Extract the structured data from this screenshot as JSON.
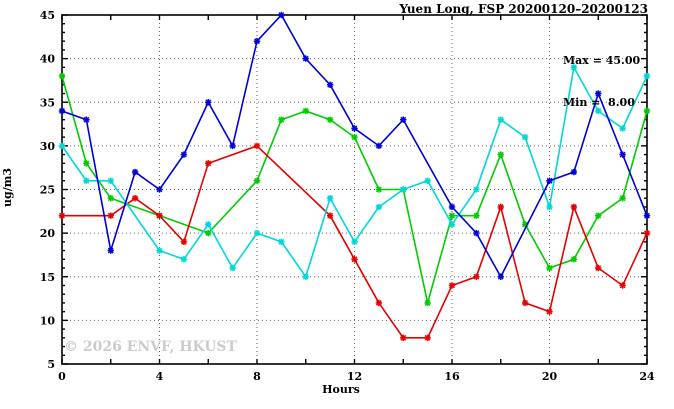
{
  "title": "Yuen Long, FSP 20200120–20200123",
  "legend": {
    "max_label": "Max = 45.00",
    "min_label": "Min =  8.00"
  },
  "watermark": "© 2026 ENVF, HKUST",
  "axes": {
    "xlabel": "Hours",
    "ylabel": "ug/m3"
  },
  "chart_data": {
    "type": "line",
    "title": "Yuen Long, FSP 20200120–20200123",
    "xlabel": "Hours",
    "ylabel": "ug/m3",
    "xlim": [
      0,
      24
    ],
    "ylim": [
      5,
      45
    ],
    "grid": "dotted",
    "legend_position": "top-right-inside",
    "stats": {
      "max": 45.0,
      "min": 8.0
    },
    "x": [
      0,
      1,
      2,
      3,
      4,
      5,
      6,
      7,
      8,
      9,
      10,
      11,
      12,
      13,
      14,
      15,
      16,
      17,
      18,
      19,
      20,
      21,
      22,
      23,
      24
    ],
    "x_tick_labels": [
      0,
      4,
      8,
      12,
      16,
      20,
      24
    ],
    "x_minor_tick_step": 2,
    "y_tick_labels": [
      5,
      10,
      15,
      20,
      25,
      30,
      35,
      40,
      45
    ],
    "y_minor_tick_step": 1,
    "x_gridlines": [
      4,
      8,
      12,
      16,
      20
    ],
    "y_gridlines": [
      10,
      15,
      20,
      25,
      30,
      35,
      40
    ],
    "marker": "asterisk-cross",
    "series": [
      {
        "name": "series-green",
        "color": "#00cc00",
        "values": [
          38,
          28,
          24,
          null,
          22,
          null,
          20,
          null,
          26,
          33,
          34,
          33,
          31,
          25,
          25,
          12,
          22,
          22,
          29,
          21,
          16,
          17,
          22,
          24,
          34
        ]
      },
      {
        "name": "series-red",
        "color": "#e60000",
        "values": [
          22,
          null,
          22,
          24,
          22,
          19,
          28,
          null,
          30,
          null,
          null,
          22,
          17,
          12,
          8,
          8,
          14,
          15,
          23,
          12,
          11,
          23,
          16,
          14,
          20
        ]
      },
      {
        "name": "series-cyan",
        "color": "#00d8d8",
        "values": [
          30,
          26,
          26,
          null,
          18,
          17,
          21,
          16,
          20,
          19,
          15,
          24,
          19,
          23,
          25,
          26,
          21,
          25,
          33,
          31,
          23,
          39,
          34,
          32,
          38
        ]
      },
      {
        "name": "series-blue",
        "color": "#0000d8",
        "values": [
          34,
          33,
          18,
          27,
          25,
          29,
          35,
          30,
          42,
          45,
          40,
          37,
          32,
          30,
          33,
          null,
          23,
          20,
          15,
          null,
          26,
          27,
          36,
          29,
          22
        ]
      }
    ]
  }
}
